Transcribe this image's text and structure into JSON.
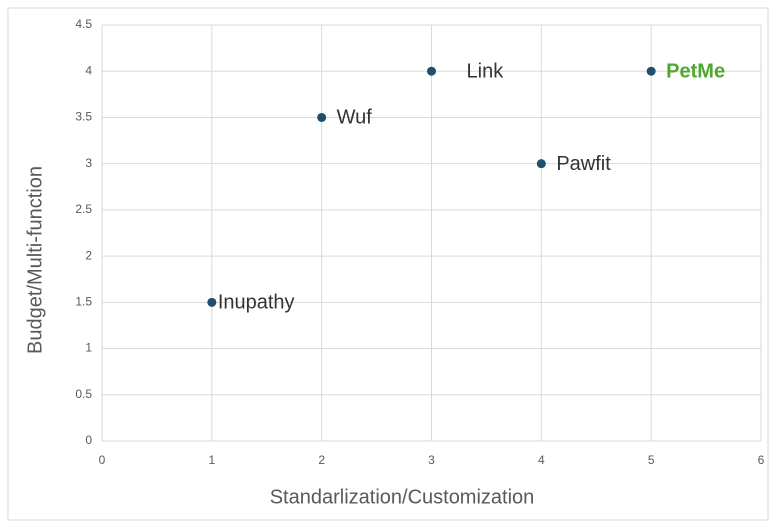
{
  "chart_data": {
    "type": "scatter",
    "x_label": "Standarlization/Customization",
    "y_label": "Budget/Multi-function",
    "x": [
      1,
      2,
      3,
      4,
      5
    ],
    "values": [
      1.5,
      3.5,
      4,
      3,
      4
    ],
    "point_labels": [
      "Inupathy",
      "Wuf",
      "Link",
      "Pawfit",
      "PetMe"
    ],
    "label_colors": [
      "#333333",
      "#333333",
      "#333333",
      "#333333",
      "#4ea72e"
    ],
    "label_bold": [
      false,
      false,
      false,
      false,
      true
    ],
    "color": "#1f4e6e",
    "xlim": [
      0,
      6
    ],
    "xticks": [
      0,
      1,
      2,
      3,
      4,
      5,
      6
    ],
    "ylim": [
      0,
      4.5
    ],
    "yticks": [
      0,
      0.5,
      1,
      1.5,
      2,
      2.5,
      3,
      3.5,
      4,
      4.5
    ],
    "grid": true
  }
}
